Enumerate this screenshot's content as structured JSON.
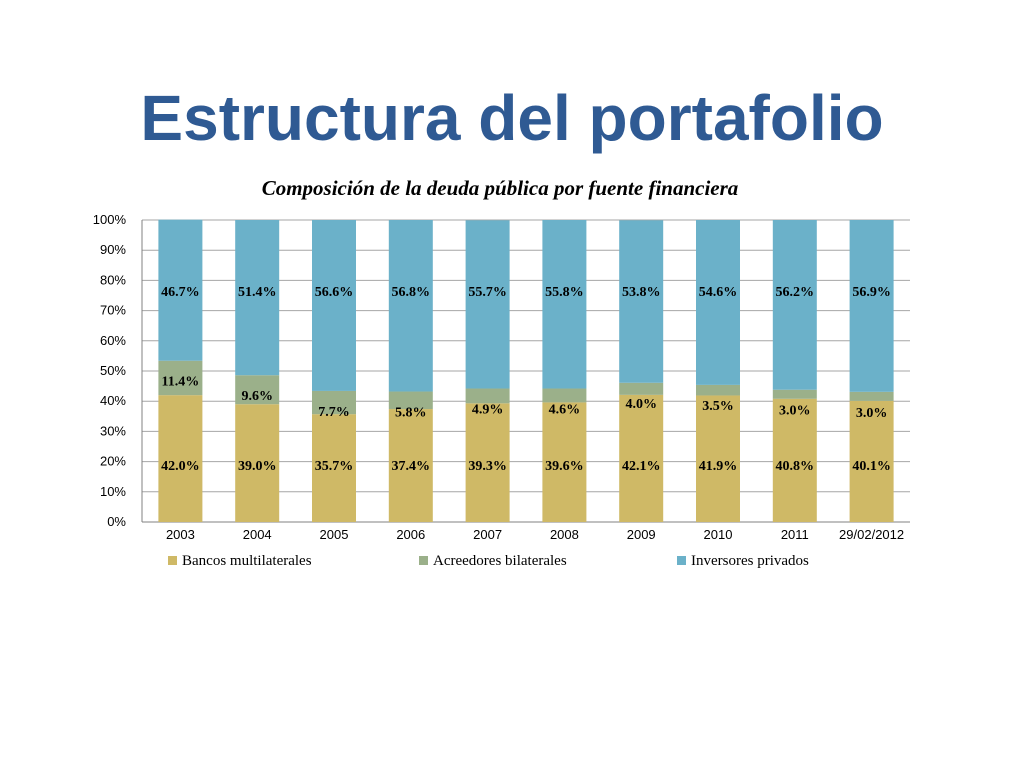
{
  "slide": {
    "title": "Estructura del portafolio"
  },
  "chart_data": {
    "type": "bar",
    "stacked": true,
    "title": "Composición de la deuda pública por fuente financiera",
    "categories": [
      "2003",
      "2004",
      "2005",
      "2006",
      "2007",
      "2008",
      "2009",
      "2010",
      "2011",
      "29/02/2012"
    ],
    "series": [
      {
        "name": "Bancos multilaterales",
        "color": "#cfb966",
        "values": [
          42.0,
          39.0,
          35.7,
          37.4,
          39.3,
          39.6,
          42.1,
          41.9,
          40.8,
          40.1
        ],
        "labels": [
          "42.0%",
          "39.0%",
          "35.7%",
          "37.4%",
          "39.3%",
          "39.6%",
          "42.1%",
          "41.9%",
          "40.8%",
          "40.1%"
        ]
      },
      {
        "name": "Acreedores bilaterales",
        "color": "#9bb08a",
        "values": [
          11.4,
          9.6,
          7.7,
          5.8,
          4.9,
          4.6,
          4.0,
          3.5,
          3.0,
          3.0
        ],
        "labels": [
          "11.4%",
          "9.6%",
          "7.7%",
          "5.8%",
          "4.9%",
          "4.6%",
          "4.0%",
          "3.5%",
          "3.0%",
          "3.0%"
        ]
      },
      {
        "name": "Inversores privados",
        "color": "#6bb1c9",
        "values": [
          46.7,
          51.4,
          56.6,
          56.8,
          55.7,
          55.8,
          53.8,
          54.6,
          56.2,
          56.9
        ],
        "labels": [
          "46.7%",
          "51.4%",
          "56.6%",
          "56.8%",
          "55.7%",
          "55.8%",
          "53.8%",
          "54.6%",
          "56.2%",
          "56.9%"
        ]
      }
    ],
    "ylim": [
      0,
      100
    ],
    "yticks": [
      "0%",
      "10%",
      "20%",
      "30%",
      "40%",
      "50%",
      "60%",
      "70%",
      "80%",
      "90%",
      "100%"
    ],
    "grid": true,
    "legend": "bottom"
  }
}
